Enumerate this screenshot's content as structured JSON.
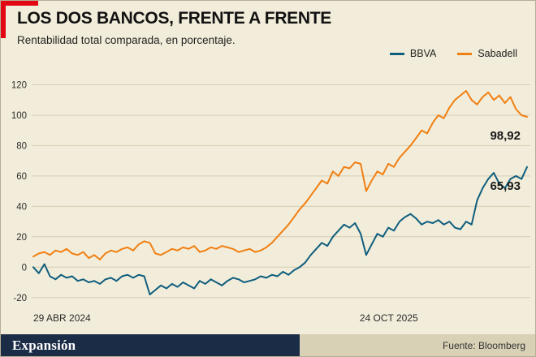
{
  "header": {
    "title": "LOS DOS BANCOS, FRENTE A FRENTE",
    "subtitle": "Rentabilidad total comparada, en porcentaje."
  },
  "footer": {
    "brand": "Expansión",
    "source": "Fuente: Bloomberg"
  },
  "colors": {
    "background": "#f2edda",
    "grid": "#d5ceb4",
    "accent_red": "#e30613",
    "footer_navy": "#1b2c47",
    "footer_tan": "#d8d1b6",
    "bbva_line": "#0f5e7e",
    "sabadell_line": "#f07f13",
    "axis_text": "#2b2b2b"
  },
  "chart_data": {
    "type": "line",
    "title": "LOS DOS BANCOS, FRENTE A FRENTE",
    "subtitle": "Rentabilidad total comparada, en porcentaje.",
    "grid": true,
    "legend_position": "top-right",
    "ylim": [
      -26,
      124
    ],
    "yticks": [
      -20,
      0,
      20,
      40,
      60,
      80,
      100,
      120
    ],
    "xticks": [
      {
        "label": "29 ABR 2024",
        "pos": 0
      },
      {
        "label": "24 OCT 2025",
        "pos": 0.72
      }
    ],
    "series": [
      {
        "name": "BBVA",
        "color": "#0f5e7e",
        "values": [
          0,
          -4,
          2,
          -6,
          -8,
          -5,
          -7,
          -6,
          -9,
          -8,
          -10,
          -9,
          -11,
          -8,
          -7,
          -9,
          -6,
          -5,
          -7,
          -5,
          -6,
          -18,
          -15,
          -12,
          -14,
          -11,
          -13,
          -10,
          -12,
          -14,
          -9,
          -11,
          -8,
          -10,
          -12,
          -9,
          -7,
          -8,
          -10,
          -9,
          -8,
          -6,
          -7,
          -5,
          -6,
          -3,
          -5,
          -2,
          0,
          3,
          8,
          12,
          16,
          14,
          20,
          24,
          28,
          26,
          29,
          22,
          8,
          15,
          22,
          20,
          26,
          24,
          30,
          33,
          35,
          32,
          28,
          30,
          29,
          31,
          28,
          30,
          26,
          25,
          30,
          28,
          44,
          52,
          58,
          62,
          55,
          52,
          58,
          60,
          58,
          65.93
        ]
      },
      {
        "name": "Sabadell",
        "color": "#f07f13",
        "values": [
          7,
          9,
          10,
          8,
          11,
          10,
          12,
          9,
          8,
          10,
          6,
          8,
          5,
          9,
          11,
          10,
          12,
          13,
          11,
          15,
          17,
          16,
          9,
          8,
          10,
          12,
          11,
          13,
          12,
          14,
          10,
          11,
          13,
          12,
          14,
          13,
          12,
          10,
          11,
          12,
          10,
          11,
          13,
          16,
          20,
          24,
          28,
          33,
          38,
          42,
          47,
          52,
          57,
          55,
          63,
          60,
          66,
          65,
          69,
          68,
          50,
          57,
          63,
          61,
          68,
          66,
          72,
          76,
          80,
          85,
          90,
          88,
          95,
          100,
          98,
          105,
          110,
          113,
          116,
          110,
          107,
          112,
          115,
          110,
          113,
          108,
          112,
          104,
          100,
          98.92
        ]
      }
    ],
    "end_labels": [
      {
        "series": "Sabadell",
        "text": "98,92"
      },
      {
        "series": "BBVA",
        "text": "65,93"
      }
    ]
  }
}
